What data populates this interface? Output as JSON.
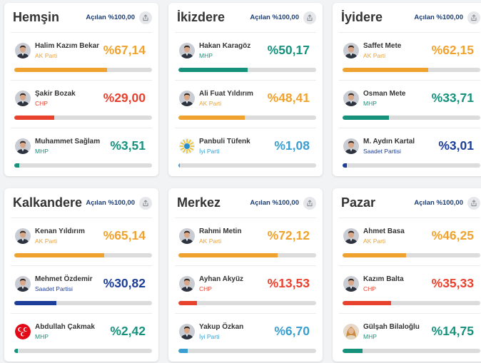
{
  "colors": {
    "AK Parti": "#f0a22e",
    "CHP": "#e8412e",
    "MHP": "#15917c",
    "İyi Parti": "#3a9fd0",
    "Saadet Partisi": "#1c3e9a"
  },
  "cards": [
    {
      "district": "Hemşin",
      "opened": "Açılan %100,00",
      "candidates": [
        {
          "name": "Halim Kazım Bekar",
          "party": "AK Parti",
          "pct_label": "%67,14",
          "pct": 67.14,
          "avatar": "man-portrait-icon"
        },
        {
          "name": "Şakir Bozak",
          "party": "CHP",
          "pct_label": "%29,00",
          "pct": 29.0,
          "avatar": "man-portrait-icon"
        },
        {
          "name": "Muhammet Sağlam",
          "party": "MHP",
          "pct_label": "%3,51",
          "pct": 3.51,
          "avatar": "man-portrait-icon"
        }
      ]
    },
    {
      "district": "İkizdere",
      "opened": "Açılan %100,00",
      "candidates": [
        {
          "name": "Hakan Karagöz",
          "party": "MHP",
          "pct_label": "%50,17",
          "pct": 50.17,
          "avatar": "man-portrait-icon"
        },
        {
          "name": "Ali Fuat Yıldırım",
          "party": "AK Parti",
          "pct_label": "%48,41",
          "pct": 48.41,
          "avatar": "man-portrait-icon"
        },
        {
          "name": "Panbuli Tüfenk",
          "party": "İyi Parti",
          "pct_label": "%1,08",
          "pct": 1.08,
          "avatar": "iyi-parti-logo-icon"
        }
      ]
    },
    {
      "district": "İyidere",
      "opened": "Açılan %100,00",
      "candidates": [
        {
          "name": "Saffet Mete",
          "party": "AK Parti",
          "pct_label": "%62,15",
          "pct": 62.15,
          "avatar": "man-portrait-icon"
        },
        {
          "name": "Osman Mete",
          "party": "MHP",
          "pct_label": "%33,71",
          "pct": 33.71,
          "avatar": "man-portrait-icon"
        },
        {
          "name": "M. Aydın Kartal",
          "party": "Saadet Partisi",
          "pct_label": "%3,01",
          "pct": 3.01,
          "avatar": "man-portrait-icon"
        }
      ]
    },
    {
      "district": "Kalkandere",
      "opened": "Açılan %100,00",
      "candidates": [
        {
          "name": "Kenan Yıldırım",
          "party": "AK Parti",
          "pct_label": "%65,14",
          "pct": 65.14,
          "avatar": "man-portrait-icon"
        },
        {
          "name": "Mehmet Özdemir",
          "party": "Saadet Partisi",
          "pct_label": "%30,82",
          "pct": 30.82,
          "avatar": "man-portrait-icon"
        },
        {
          "name": "Abdullah Çakmak",
          "party": "MHP",
          "pct_label": "%2,42",
          "pct": 2.42,
          "avatar": "mhp-logo-icon"
        }
      ]
    },
    {
      "district": "Merkez",
      "opened": "Açılan %100,00",
      "candidates": [
        {
          "name": "Rahmi Metin",
          "party": "AK Parti",
          "pct_label": "%72,12",
          "pct": 72.12,
          "avatar": "man-portrait-icon"
        },
        {
          "name": "Ayhan Akyüz",
          "party": "CHP",
          "pct_label": "%13,53",
          "pct": 13.53,
          "avatar": "man-portrait-icon"
        },
        {
          "name": "Yakup Özkan",
          "party": "İyi Parti",
          "pct_label": "%6,70",
          "pct": 6.7,
          "avatar": "man-portrait-icon"
        }
      ]
    },
    {
      "district": "Pazar",
      "opened": "Açılan %100,00",
      "candidates": [
        {
          "name": "Ahmet Basa",
          "party": "AK Parti",
          "pct_label": "%46,25",
          "pct": 46.25,
          "avatar": "man-portrait-icon"
        },
        {
          "name": "Kazım Balta",
          "party": "CHP",
          "pct_label": "%35,33",
          "pct": 35.33,
          "avatar": "man-portrait-icon"
        },
        {
          "name": "Gülşah Bilaloğlu",
          "party": "MHP",
          "pct_label": "%14,75",
          "pct": 14.75,
          "avatar": "woman-portrait-icon"
        }
      ]
    }
  ]
}
